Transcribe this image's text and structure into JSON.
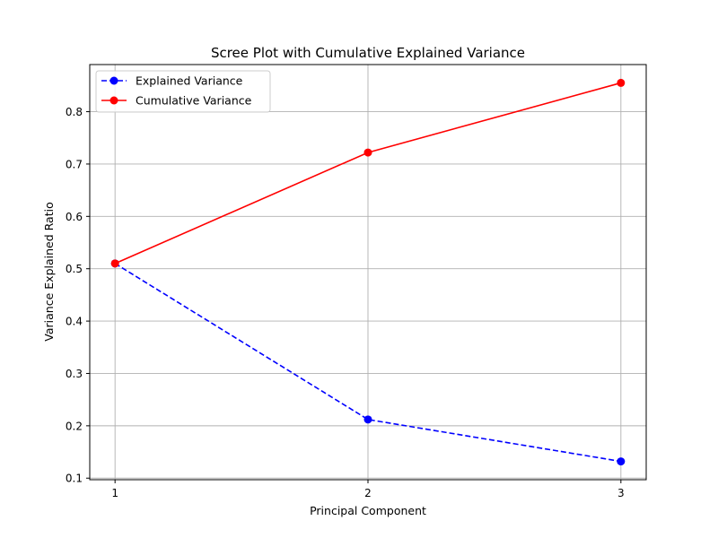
{
  "chart_data": {
    "type": "line",
    "title": "Scree Plot with Cumulative Explained Variance",
    "xlabel": "Principal Component",
    "ylabel": "Variance Explained Ratio",
    "x": [
      1,
      2,
      3
    ],
    "xticks": [
      "1",
      "2",
      "3"
    ],
    "yticks": [
      "0.1",
      "0.2",
      "0.3",
      "0.4",
      "0.5",
      "0.6",
      "0.7",
      "0.8"
    ],
    "ylim": [
      0.097,
      0.89
    ],
    "grid": true,
    "legend_position": "top-left",
    "series": [
      {
        "name": "Explained Variance",
        "values": [
          0.51,
          0.212,
          0.132
        ],
        "color": "#0000ff",
        "style": "dashed",
        "marker": "circle"
      },
      {
        "name": "Cumulative Variance",
        "values": [
          0.51,
          0.722,
          0.855
        ],
        "color": "#ff0000",
        "style": "solid",
        "marker": "circle"
      }
    ]
  }
}
